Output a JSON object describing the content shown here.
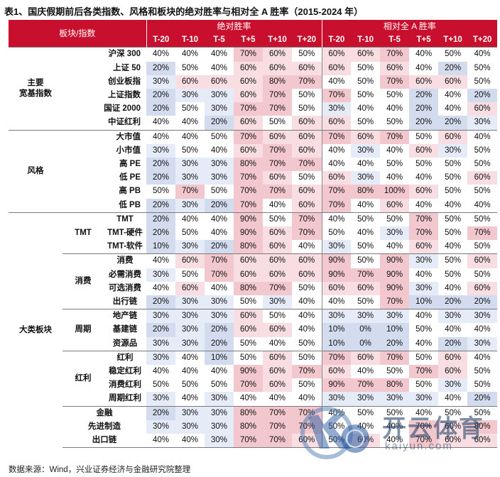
{
  "title": "表1、国庆假期前后各类指数、风格和板块的绝对胜率与相对全 A 胜率（2015-2024 年）",
  "header": {
    "col_label": "板块/指数",
    "abs_label": "绝对胜率",
    "rel_label": "相对全 A 胜率",
    "periods": [
      "T-20",
      "T-10",
      "T-5",
      "T+5",
      "T+10",
      "T+20"
    ]
  },
  "colors": {
    "header_red": "#c8102e",
    "blue_strong": "#d3dcee",
    "blue_light": "#e6ecf7",
    "red_light": "#f8dee2",
    "red_strong": "#f2c7cd"
  },
  "groups": [
    {
      "name": "主要\n宽基指数",
      "rows": [
        {
          "label": "沪深 300",
          "abs": [
            "40%",
            "40%",
            "40%",
            "70%",
            "60%",
            "50%"
          ],
          "rel": [
            "60%",
            "60%",
            "70%",
            "40%",
            "50%",
            "40%"
          ]
        },
        {
          "label": "上证 50",
          "abs": [
            "20%",
            "50%",
            "40%",
            "60%",
            "60%",
            "60%"
          ],
          "rel": [
            "60%",
            "50%",
            "60%",
            "40%",
            "20%",
            "50%"
          ]
        },
        {
          "label": "创业板指",
          "abs": [
            "30%",
            "60%",
            "60%",
            "60%",
            "80%",
            "70%"
          ],
          "rel": [
            "40%",
            "50%",
            "70%",
            "60%",
            "60%",
            "50%"
          ]
        },
        {
          "label": "上证指数",
          "abs": [
            "20%",
            "30%",
            "30%",
            "60%",
            "70%",
            "50%"
          ],
          "rel": [
            "70%",
            "50%",
            "50%",
            "20%",
            "40%",
            "20%"
          ]
        },
        {
          "label": "国证 2000",
          "abs": [
            "20%",
            "50%",
            "30%",
            "70%",
            "70%",
            "50%"
          ],
          "rel": [
            "30%",
            "40%",
            "40%",
            "20%",
            "40%",
            "60%"
          ]
        },
        {
          "label": "中证红利",
          "abs": [
            "40%",
            "40%",
            "20%",
            "60%",
            "50%",
            "60%"
          ],
          "rel": [
            "60%",
            "50%",
            "50%",
            "20%",
            "20%",
            "30%"
          ]
        }
      ]
    },
    {
      "name": "风格",
      "rows": [
        {
          "label": "大市值",
          "abs": [
            "40%",
            "40%",
            "50%",
            "70%",
            "60%",
            "60%"
          ],
          "rel": [
            "70%",
            "60%",
            "70%",
            "50%",
            "60%",
            "40%"
          ]
        },
        {
          "label": "小市值",
          "abs": [
            "30%",
            "50%",
            "40%",
            "60%",
            "70%",
            "60%"
          ],
          "rel": [
            "40%",
            "30%",
            "40%",
            "60%",
            "30%",
            "50%"
          ]
        },
        {
          "label": "高 PE",
          "abs": [
            "20%",
            "30%",
            "30%",
            "80%",
            "70%",
            "70%"
          ],
          "rel": [
            "40%",
            "40%",
            "50%",
            "50%",
            "50%",
            "50%"
          ]
        },
        {
          "label": "低 PE",
          "abs": [
            "20%",
            "30%",
            "30%",
            "70%",
            "60%",
            "50%"
          ],
          "rel": [
            "60%",
            "30%",
            "40%",
            "40%",
            "50%",
            "60%"
          ]
        },
        {
          "label": "高 PB",
          "abs": [
            "50%",
            "70%",
            "50%",
            "70%",
            "70%",
            "60%"
          ],
          "rel": [
            "70%",
            "80%",
            "100%",
            "60%",
            "50%",
            "50%"
          ]
        },
        {
          "label": "低 PB",
          "abs": [
            "20%",
            "30%",
            "20%",
            "70%",
            "40%",
            "60%"
          ],
          "rel": [
            "70%",
            "40%",
            "60%",
            "40%",
            "40%",
            "40%"
          ]
        }
      ]
    },
    {
      "name": "大类板块",
      "subgroups": [
        {
          "name": "TMT",
          "rows": [
            {
              "label": "TMT",
              "abs": [
                "20%",
                "40%",
                "40%",
                "90%",
                "50%",
                "70%"
              ],
              "rel": [
                "40%",
                "50%",
                "50%",
                "70%",
                "50%",
                "50%"
              ]
            },
            {
              "label": "TMT-硬件",
              "abs": [
                "20%",
                "50%",
                "40%",
                "90%",
                "60%",
                "70%"
              ],
              "rel": [
                "50%",
                "40%",
                "30%",
                "70%",
                "50%",
                "70%"
              ]
            },
            {
              "label": "TMT-软件",
              "abs": [
                "10%",
                "30%",
                "20%",
                "80%",
                "60%",
                "40%"
              ],
              "rel": [
                "30%",
                "50%",
                "40%",
                "60%",
                "40%",
                "50%"
              ]
            }
          ]
        },
        {
          "name": "消费",
          "rows": [
            {
              "label": "消费",
              "abs": [
                "40%",
                "60%",
                "70%",
                "60%",
                "60%",
                "60%"
              ],
              "rel": [
                "90%",
                "50%",
                "90%",
                "30%",
                "50%",
                "60%"
              ]
            },
            {
              "label": "必需消费",
              "abs": [
                "30%",
                "50%",
                "70%",
                "60%",
                "60%",
                "60%"
              ],
              "rel": [
                "90%",
                "70%",
                "90%",
                "40%",
                "50%",
                "50%"
              ]
            },
            {
              "label": "可选消费",
              "abs": [
                "40%",
                "60%",
                "40%",
                "80%",
                "70%",
                "50%"
              ],
              "rel": [
                "60%",
                "60%",
                "90%",
                "30%",
                "40%",
                "60%"
              ]
            },
            {
              "label": "出行链",
              "abs": [
                "20%",
                "30%",
                "30%",
                "50%",
                "30%",
                "40%"
              ],
              "rel": [
                "40%",
                "50%",
                "70%",
                "10%",
                "20%",
                "20%"
              ]
            }
          ]
        },
        {
          "name": "周期",
          "rows": [
            {
              "label": "地产链",
              "abs": [
                "30%",
                "30%",
                "30%",
                "60%",
                "50%",
                "40%"
              ],
              "rel": [
                "30%",
                "30%",
                "30%",
                "40%",
                "30%",
                "30%"
              ]
            },
            {
              "label": "基建链",
              "abs": [
                "20%",
                "30%",
                "20%",
                "60%",
                "60%",
                "40%"
              ],
              "rel": [
                "10%",
                "0%",
                "10%",
                "50%",
                "40%",
                "40%"
              ]
            },
            {
              "label": "资源品",
              "abs": [
                "30%",
                "30%",
                "20%",
                "50%",
                "40%",
                "50%"
              ],
              "rel": [
                "10%",
                "0%",
                "20%",
                "40%",
                "20%",
                "30%"
              ]
            }
          ]
        },
        {
          "name": "红利",
          "rows": [
            {
              "label": "红利",
              "abs": [
                "30%",
                "40%",
                "10%",
                "50%",
                "60%",
                "50%"
              ],
              "rel": [
                "70%",
                "60%",
                "70%",
                "50%",
                "60%",
                "40%"
              ]
            },
            {
              "label": "稳定红利",
              "abs": [
                "40%",
                "40%",
                "40%",
                "90%",
                "60%",
                "70%"
              ],
              "rel": [
                "60%",
                "40%",
                "50%",
                "70%",
                "60%",
                "50%"
              ]
            },
            {
              "label": "消费红利",
              "abs": [
                "50%",
                "50%",
                "50%",
                "70%",
                "60%",
                "50%"
              ],
              "rel": [
                "90%",
                "70%",
                "80%",
                "50%",
                "30%",
                "50%"
              ]
            },
            {
              "label": "周期红利",
              "abs": [
                "30%",
                "40%",
                "30%",
                "40%",
                "40%",
                "40%"
              ],
              "rel": [
                "30%",
                "30%",
                "30%",
                "30%",
                "40%",
                "20%"
              ]
            }
          ]
        },
        {
          "name": "",
          "rows": [
            {
              "label": "金融",
              "abs": [
                "20%",
                "30%",
                "30%",
                "80%",
                "70%",
                "70%"
              ],
              "rel": [
                "40%",
                "50%",
                "50%",
                "40%",
                "50%",
                "50%"
              ]
            },
            {
              "label": "先进制造",
              "abs": [
                "30%",
                "30%",
                "30%",
                "80%",
                "70%",
                "70%"
              ],
              "rel": [
                "50%",
                "40%",
                "40%",
                "70%",
                "60%",
                "80%"
              ]
            },
            {
              "label": "出口链",
              "abs": [
                "40%",
                "40%",
                "30%",
                "70%",
                "70%",
                "60%"
              ],
              "rel": [
                "50%",
                "60%",
                "40%",
                "70%",
                "60%",
                "60%"
              ]
            }
          ]
        }
      ]
    }
  ],
  "source": "数据来源：Wind，兴业证券经济与金融研究院整理",
  "watermark": {
    "text": "开云体育",
    "sub": "kaiyun.com"
  }
}
